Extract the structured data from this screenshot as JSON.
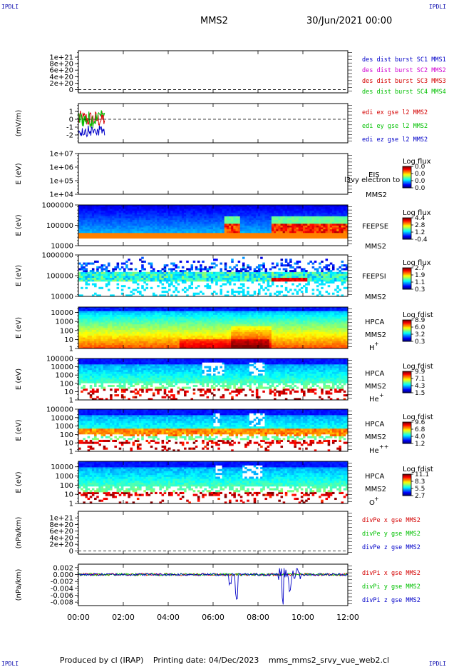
{
  "header": {
    "corner_tl": "IPDLI",
    "corner_tr": "IPDLI",
    "corner_bl": "IPDLI",
    "corner_br": "IPDLI",
    "spacecraft": "MMS2",
    "datetime": "30/Jun/2021 00:00"
  },
  "footer": {
    "produced_by": "Produced by cl (IRAP)",
    "printing_date": "Printing date: 04/Dec/2023",
    "filename": "mms_mms2_srvy_vue_web2.cl"
  },
  "colors": {
    "red": "#d40000",
    "green": "#00c000",
    "blue": "#0000c8",
    "magenta": "#d000d0",
    "legend_blue": "#0000a0"
  },
  "chart_data": [
    {
      "id": "des_dist",
      "type": "line",
      "ylim": [
        -1e+20,
        1.2e+21
      ],
      "ytick_labels": [
        "1e+21",
        "8e+20",
        "6e+20",
        "4e+20",
        "2e+20",
        "0"
      ],
      "ytick_values": [
        1e+21,
        8e+20,
        6e+20,
        4e+20,
        2e+20,
        0
      ],
      "dashed_zero": true,
      "series": [
        {
          "name": "des dist burst SC1 MMS1",
          "color": "#0000c8"
        },
        {
          "name": "des dist burst SC2 MMS2",
          "color": "#d000d0"
        },
        {
          "name": "des dist burst SC3 MMS3",
          "color": "#d40000"
        },
        {
          "name": "des dist burst SC4 MMS4",
          "color": "#00c000"
        }
      ]
    },
    {
      "id": "edi_e",
      "type": "line",
      "ylabel": "(mV/m)",
      "ylim": [
        -3,
        2
      ],
      "ytick_labels": [
        "1",
        "0",
        "-1",
        "-2"
      ],
      "ytick_values": [
        1,
        0,
        -1,
        -2
      ],
      "dashed_zero": true,
      "x_span": [
        "00:00",
        "01:10"
      ],
      "series": [
        {
          "name": "edi ex gse l2 MMS2",
          "color": "#d40000"
        },
        {
          "name": "edi ey gse l2 MMS2",
          "color": "#00c000"
        },
        {
          "name": "edi ez gse l2 MMS2",
          "color": "#0000c8"
        }
      ]
    },
    {
      "id": "eis",
      "type": "heatmap",
      "ylabel": "E (eV)",
      "yscale": "log",
      "ylim": [
        10000.0,
        10000000.0
      ],
      "ytick_labels": [
        "1e+07",
        "1e+06",
        "1e+05",
        "1e+04"
      ],
      "ytick_values": [
        10000000.0,
        1000000.0,
        100000.0,
        10000.0
      ],
      "instrument": "EIS",
      "spacecraft": "MMS2",
      "overlay_text": "l3vy electron to",
      "colorbar_title": "Log flux",
      "colorbar_ticks": [
        "0.0",
        "0.0",
        "0.0",
        "0.0"
      ]
    },
    {
      "id": "feeps_e",
      "type": "heatmap",
      "ylabel": "E (eV)",
      "yscale": "log",
      "ylim": [
        10000.0,
        1000000.0
      ],
      "ytick_labels": [
        "1000000",
        "100000",
        "10000"
      ],
      "ytick_values": [
        1000000.0,
        100000.0,
        10000.0
      ],
      "instrument": "FEEPSE",
      "spacecraft": "MMS2",
      "colorbar_title": "Log flux",
      "colorbar_ticks": [
        "4.4",
        "2.8",
        "1.2",
        "-0.4"
      ]
    },
    {
      "id": "feeps_i",
      "type": "heatmap",
      "ylabel": "E (eV)",
      "yscale": "log",
      "ylim": [
        10000.0,
        1000000.0
      ],
      "ytick_labels": [
        "1000000",
        "100000",
        "10000"
      ],
      "ytick_values": [
        1000000.0,
        100000.0,
        10000.0
      ],
      "instrument": "FEEPSI",
      "spacecraft": "MMS2",
      "colorbar_title": "Log flux",
      "colorbar_ticks": [
        "2.7",
        "1.9",
        "1.1",
        "0.3"
      ]
    },
    {
      "id": "hpca_h",
      "type": "heatmap",
      "ylabel": "E (eV)",
      "yscale": "log",
      "ylim": [
        1,
        40000
      ],
      "ytick_labels": [
        "10000",
        "1000",
        "100",
        "10",
        "1"
      ],
      "ytick_values": [
        10000,
        1000,
        100,
        10,
        1
      ],
      "instrument": "HPCA",
      "spacecraft": "MMS2",
      "species": "H",
      "charge": "+",
      "colorbar_title": "Log fdist",
      "colorbar_ticks": [
        "8.9",
        "6.0",
        "3.2",
        "0.3"
      ]
    },
    {
      "id": "hpca_he1",
      "type": "heatmap",
      "ylabel": "E (eV)",
      "yscale": "log",
      "ylim": [
        1,
        100000
      ],
      "ytick_labels": [
        "100000",
        "10000",
        "1000",
        "100",
        "10",
        "1"
      ],
      "ytick_values": [
        100000,
        10000,
        1000,
        100,
        10,
        1
      ],
      "instrument": "HPCA",
      "spacecraft": "MMS2",
      "species": "He",
      "charge": "+",
      "colorbar_title": "Log fdist",
      "colorbar_ticks": [
        "9.9",
        "7.1",
        "4.3",
        "1.5"
      ]
    },
    {
      "id": "hpca_he2",
      "type": "heatmap",
      "ylabel": "E (eV)",
      "yscale": "log",
      "ylim": [
        1,
        100000
      ],
      "ytick_labels": [
        "100000",
        "10000",
        "1000",
        "100",
        "10",
        "1"
      ],
      "ytick_values": [
        100000,
        10000,
        1000,
        100,
        10,
        1
      ],
      "instrument": "HPCA",
      "spacecraft": "MMS2",
      "species": "He",
      "charge": "++",
      "colorbar_title": "Log fdist",
      "colorbar_ticks": [
        "9.6",
        "6.8",
        "4.0",
        "1.2"
      ]
    },
    {
      "id": "hpca_o",
      "type": "heatmap",
      "ylabel": "E (eV)",
      "yscale": "log",
      "ylim": [
        1,
        40000
      ],
      "ytick_labels": [
        "10000",
        "1000",
        "100",
        "10",
        "1"
      ],
      "ytick_values": [
        10000,
        1000,
        100,
        10,
        1
      ],
      "instrument": "HPCA",
      "spacecraft": "MMS2",
      "species": "O",
      "charge": "+",
      "colorbar_title": "Log fdist",
      "colorbar_ticks": [
        "11.1",
        "8.3",
        "5.5",
        "2.7"
      ]
    },
    {
      "id": "divpe",
      "type": "line",
      "ylabel": "(nPa/km)",
      "ylim": [
        -1e+20,
        1.2e+21
      ],
      "ytick_labels": [
        "1e+21",
        "8e+20",
        "6e+20",
        "4e+20",
        "2e+20",
        "0"
      ],
      "ytick_values": [
        1e+21,
        8e+20,
        6e+20,
        4e+20,
        2e+20,
        0
      ],
      "dashed_zero": true,
      "series": [
        {
          "name": "divPe x gse MMS2",
          "color": "#d40000"
        },
        {
          "name": "divPe y gse MMS2",
          "color": "#00c000"
        },
        {
          "name": "divPe z gse MMS2",
          "color": "#0000c8"
        }
      ]
    },
    {
      "id": "divpi",
      "type": "line",
      "ylabel": "(nPa/km)",
      "ylim": [
        -0.009,
        0.003
      ],
      "ytick_labels": [
        "0.002",
        "0.000",
        "-0.002",
        "-0.004",
        "-0.006",
        "-0.008"
      ],
      "ytick_values": [
        0.002,
        0.0,
        -0.002,
        -0.004,
        -0.006,
        -0.008
      ],
      "dashed_zero": false,
      "spikes": [
        {
          "t": 7.05,
          "value": -0.0075
        },
        {
          "t": 6.75,
          "value": -0.003
        },
        {
          "t": 9.1,
          "value": -0.0088
        },
        {
          "t": 9.4,
          "value": -0.0045
        }
      ],
      "series": [
        {
          "name": "divPi x gse MMS2",
          "color": "#d40000"
        },
        {
          "name": "divPi y gse MMS2",
          "color": "#00c000"
        },
        {
          "name": "divPi z gse MMS2",
          "color": "#0000c8"
        }
      ]
    }
  ],
  "time_axis": {
    "xlim_hours": [
      0,
      12
    ],
    "tick_labels": [
      "00:00",
      "02:00",
      "04:00",
      "06:00",
      "08:00",
      "10:00",
      "12:00"
    ],
    "tick_values": [
      0,
      2,
      4,
      6,
      8,
      10,
      12
    ]
  }
}
